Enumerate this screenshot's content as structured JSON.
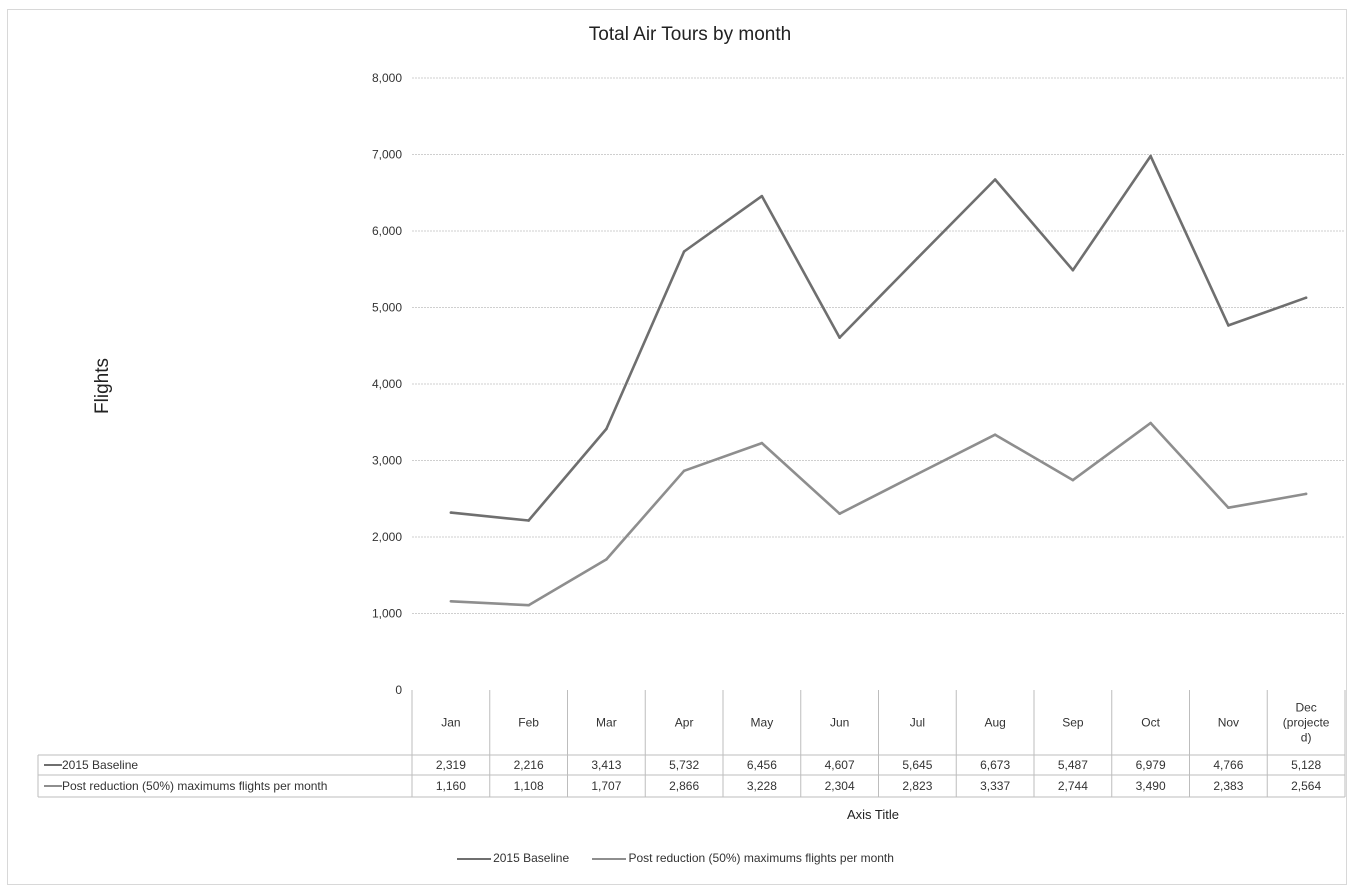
{
  "chart_data": {
    "type": "line",
    "title": "Total Air Tours by month",
    "xlabel": "Axis Title",
    "ylabel": "Flights",
    "ylim": [
      0,
      8000
    ],
    "yticks": [
      "0",
      "1,000",
      "2,000",
      "3,000",
      "4,000",
      "5,000",
      "6,000",
      "7,000",
      "8,000"
    ],
    "categories": [
      "Jan",
      "Feb",
      "Mar",
      "Apr",
      "May",
      "Jun",
      "Jul",
      "Aug",
      "Sep",
      "Oct",
      "Nov",
      "Dec (projected)"
    ],
    "category_lines": [
      [
        "Jan"
      ],
      [
        "Feb"
      ],
      [
        "Mar"
      ],
      [
        "Apr"
      ],
      [
        "May"
      ],
      [
        "Jun"
      ],
      [
        "Jul"
      ],
      [
        "Aug"
      ],
      [
        "Sep"
      ],
      [
        "Oct"
      ],
      [
        "Nov"
      ],
      [
        "Dec",
        "(projecte",
        "d)"
      ]
    ],
    "grid": true,
    "legend": "bottom",
    "series": [
      {
        "name": "2015 Baseline",
        "color": "#6f6f6f",
        "values": [
          2319,
          2216,
          3413,
          5732,
          6456,
          4607,
          5645,
          6673,
          5487,
          6979,
          4766,
          5128
        ],
        "labels": [
          "2,319",
          "2,216",
          "3,413",
          "5,732",
          "6,456",
          "4,607",
          "5,645",
          "6,673",
          "5,487",
          "6,979",
          "4,766",
          "5,128"
        ]
      },
      {
        "name": "Post reduction (50%) maximums flights per month",
        "color": "#8e8e8e",
        "values": [
          1160,
          1108,
          1707,
          2866,
          3228,
          2304,
          2823,
          3337,
          2744,
          3490,
          2383,
          2564
        ],
        "labels": [
          "1,160",
          "1,108",
          "1,707",
          "2,866",
          "3,228",
          "2,304",
          "2,823",
          "3,337",
          "2,744",
          "3,490",
          "2,383",
          "2,564"
        ]
      }
    ]
  }
}
